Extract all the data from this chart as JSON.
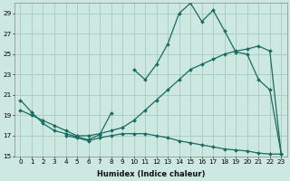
{
  "xlabel": "Humidex (Indice chaleur)",
  "bg_color": "#cce8e0",
  "grid_color": "#aacec6",
  "line_color": "#1a6b60",
  "series": [
    {
      "x": [
        0,
        1,
        2,
        3,
        4,
        5,
        6,
        7,
        8,
        9,
        10,
        11,
        12,
        13,
        14,
        15,
        16,
        17,
        18,
        19,
        20,
        21,
        22,
        23
      ],
      "y": [
        20.5,
        19.3,
        18.2,
        17.5,
        17.2,
        16.9,
        16.6,
        17.1,
        19.2,
        null,
        23.5,
        22.5,
        24.0,
        26.0,
        29.0,
        30.0,
        28.2,
        29.3,
        27.3,
        25.2,
        25.0,
        22.5,
        21.5,
        15.2
      ]
    },
    {
      "x": [
        0,
        1,
        2,
        3,
        4,
        5,
        6,
        7,
        8,
        9,
        10,
        11,
        12,
        13,
        14,
        15,
        16,
        17,
        18,
        19,
        20,
        21,
        22,
        23
      ],
      "y": [
        19.5,
        19.0,
        18.5,
        18.0,
        17.5,
        17.0,
        17.0,
        17.2,
        17.5,
        17.8,
        18.5,
        19.5,
        20.5,
        21.5,
        22.5,
        23.5,
        24.0,
        24.5,
        25.0,
        25.3,
        25.5,
        25.8,
        25.3,
        15.2
      ]
    },
    {
      "x": [
        4,
        5,
        6,
        7,
        8,
        9,
        10,
        11,
        12,
        13,
        14,
        15,
        16,
        17,
        18,
        19,
        20,
        21,
        22,
        23
      ],
      "y": [
        17.0,
        16.8,
        16.5,
        16.8,
        17.0,
        17.2,
        17.2,
        17.2,
        17.0,
        16.8,
        16.5,
        16.3,
        16.1,
        15.9,
        15.7,
        15.6,
        15.5,
        15.3,
        15.2,
        15.2
      ]
    }
  ],
  "ylim": [
    15,
    30
  ],
  "xlim": [
    -0.5,
    23.5
  ],
  "yticks": [
    15,
    17,
    19,
    21,
    23,
    25,
    27,
    29
  ],
  "xticks": [
    0,
    1,
    2,
    3,
    4,
    5,
    6,
    7,
    8,
    9,
    10,
    11,
    12,
    13,
    14,
    15,
    16,
    17,
    18,
    19,
    20,
    21,
    22,
    23
  ],
  "xlabel_fontsize": 6.0,
  "tick_fontsize": 5.2
}
